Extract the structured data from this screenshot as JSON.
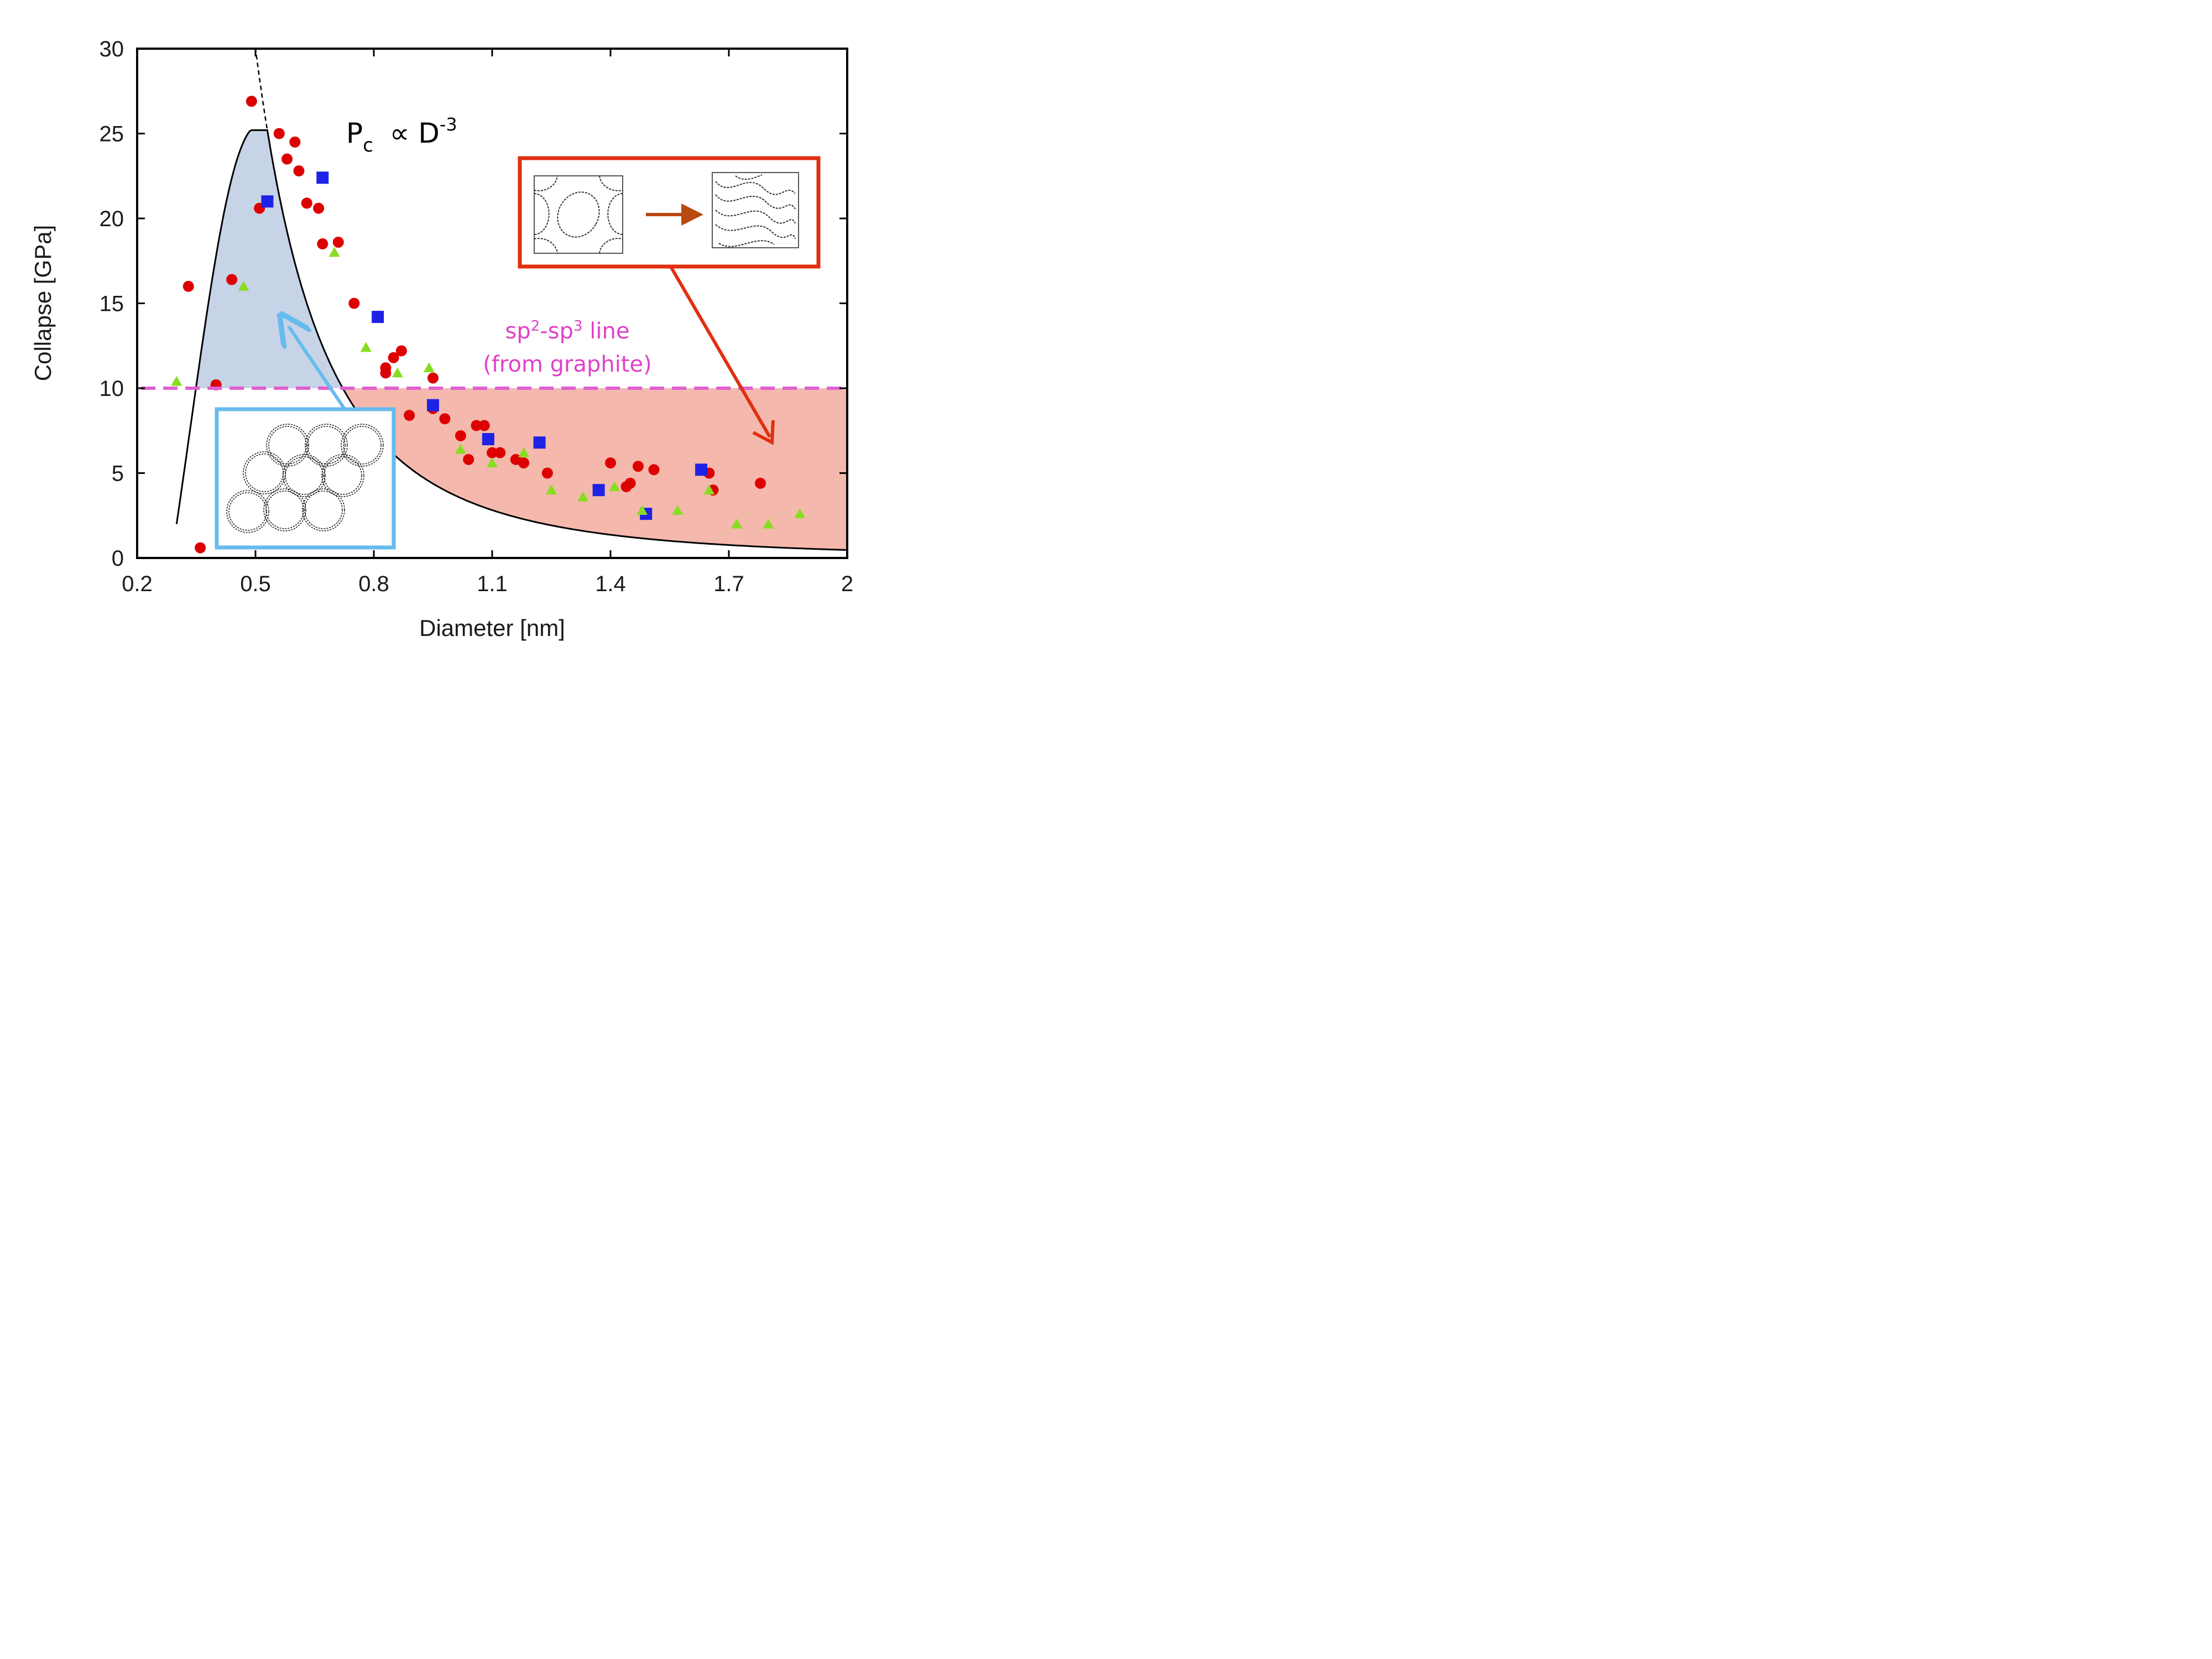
{
  "chart_data": {
    "type": "scatter",
    "xlabel": "Diameter [nm]",
    "ylabel": "Collapse [GPa]",
    "xlim": [
      0.2,
      2.0
    ],
    "ylim": [
      0,
      30
    ],
    "xticks": [
      "0.2",
      "0.5",
      "0.8",
      "1.1",
      "1.4",
      "1.7",
      "2"
    ],
    "yticks": [
      "0",
      "5",
      "10",
      "15",
      "20",
      "25",
      "30"
    ],
    "grid": false,
    "annotations": {
      "law": {
        "base": "P",
        "sub": "c",
        "mid": " ∝ D",
        "sup": "-3"
      },
      "sp_line": {
        "p1": "sp",
        "s1": "2",
        "p2": "-sp",
        "s2": "3",
        "p3": " line",
        "line2": "(from graphite)"
      }
    },
    "reference_line": {
      "y": 10,
      "color": "#e060d0",
      "style": "dashed"
    },
    "fit_curve": {
      "color": "#000000",
      "peak": [
        0.53,
        25.2
      ],
      "dashed_extension": "P ~ D^-3"
    },
    "regions": [
      {
        "fill": "#c7d3e7",
        "description_source": "fit curve above 10 GPa"
      },
      {
        "fill": "#f4b9ac",
        "description_source": "fit curve below 10 GPa"
      }
    ],
    "series": [
      {
        "marker": "circle",
        "color": "#dd0000",
        "points": [
          [
            0.36,
            0.6
          ],
          [
            0.33,
            16.0
          ],
          [
            0.4,
            10.2
          ],
          [
            0.44,
            16.4
          ],
          [
            0.49,
            26.9
          ],
          [
            0.51,
            20.6
          ],
          [
            0.56,
            25.0
          ],
          [
            0.58,
            23.5
          ],
          [
            0.6,
            24.5
          ],
          [
            0.61,
            22.8
          ],
          [
            0.63,
            20.9
          ],
          [
            0.66,
            20.6
          ],
          [
            0.67,
            18.5
          ],
          [
            0.71,
            18.6
          ],
          [
            0.75,
            15.0
          ],
          [
            0.83,
            11.2
          ],
          [
            0.83,
            10.9
          ],
          [
            0.85,
            11.8
          ],
          [
            0.87,
            12.2
          ],
          [
            0.89,
            8.4
          ],
          [
            0.95,
            10.6
          ],
          [
            0.95,
            8.8
          ],
          [
            0.98,
            8.2
          ],
          [
            1.02,
            7.2
          ],
          [
            1.04,
            5.8
          ],
          [
            1.06,
            7.8
          ],
          [
            1.08,
            7.8
          ],
          [
            1.1,
            6.2
          ],
          [
            1.12,
            6.2
          ],
          [
            1.16,
            5.8
          ],
          [
            1.18,
            5.6
          ],
          [
            1.24,
            5.0
          ],
          [
            1.4,
            5.6
          ],
          [
            1.44,
            4.2
          ],
          [
            1.45,
            4.4
          ],
          [
            1.47,
            5.4
          ],
          [
            1.51,
            5.2
          ],
          [
            1.65,
            5.0
          ],
          [
            1.66,
            4.0
          ],
          [
            1.78,
            4.4
          ]
        ]
      },
      {
        "marker": "square",
        "color": "#1e22e6",
        "points": [
          [
            0.53,
            21.0
          ],
          [
            0.67,
            22.4
          ],
          [
            0.81,
            14.2
          ],
          [
            0.95,
            9.0
          ],
          [
            1.09,
            7.0
          ],
          [
            1.22,
            6.8
          ],
          [
            1.37,
            4.0
          ],
          [
            1.49,
            2.6
          ],
          [
            1.63,
            5.2
          ]
        ]
      },
      {
        "marker": "triangle",
        "color": "#88dd22",
        "points": [
          [
            0.3,
            10.4
          ],
          [
            0.47,
            16.0
          ],
          [
            0.7,
            18.0
          ],
          [
            0.78,
            12.4
          ],
          [
            0.86,
            10.9
          ],
          [
            0.94,
            11.2
          ],
          [
            1.02,
            6.4
          ],
          [
            1.1,
            5.6
          ],
          [
            1.18,
            6.2
          ],
          [
            1.25,
            4.0
          ],
          [
            1.33,
            3.6
          ],
          [
            1.41,
            4.2
          ],
          [
            1.48,
            2.8
          ],
          [
            1.57,
            2.8
          ],
          [
            1.65,
            4.0
          ],
          [
            1.72,
            2.0
          ],
          [
            1.8,
            2.0
          ],
          [
            1.88,
            2.6
          ]
        ]
      }
    ],
    "insets": [
      {
        "description_source": "lattice of collapsed nanotube cross-sections (blue box)",
        "frame_color": "#66bbee"
      },
      {
        "description_source": "polymerized nanotube rings transforming (red box)",
        "frame_color": "#e03010",
        "arrow_color": "#b84a10"
      }
    ]
  }
}
